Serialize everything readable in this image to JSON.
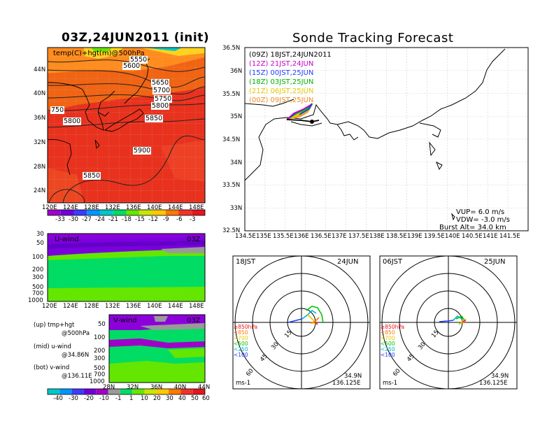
{
  "left_title": "03Z,24JUN2011 (init)",
  "right_title": "Sonde Tracking Forecast",
  "map500": {
    "label": "temp(C)+hgt(m)@500hPa",
    "contours": [
      "5550",
      "5600",
      "5650",
      "5700",
      "5750",
      "5800",
      "5850",
      "5900",
      "5850",
      "5800",
      "750"
    ],
    "y_ticks": [
      "44N",
      "40N",
      "36N",
      "32N",
      "28N",
      "24N"
    ],
    "x_ticks": [
      "120E",
      "124E",
      "128E",
      "132E",
      "136E",
      "140E",
      "144E",
      "148E"
    ]
  },
  "temp_colorbar": {
    "labels": [
      "-33",
      "-30",
      "-27",
      "-24",
      "-21",
      "-18",
      "-15",
      "-12",
      "-9",
      "-6",
      "-3"
    ],
    "colors": [
      "#a000c8",
      "#6e00dc",
      "#3c3cff",
      "#0096ff",
      "#00c8c8",
      "#00dc64",
      "#64e600",
      "#c8e600",
      "#ffc800",
      "#ff7800",
      "#f03228",
      "#e6141e"
    ]
  },
  "uwind": {
    "label": "U-wind",
    "time": "03Z",
    "y_ticks": [
      "30",
      "50",
      "100",
      "200",
      "300",
      "500",
      "700",
      "1000"
    ],
    "x_ticks": [
      "120E",
      "124E",
      "128E",
      "132E",
      "136E",
      "140E",
      "144E",
      "148E"
    ]
  },
  "vwind": {
    "label": "V-wind",
    "time": "03Z",
    "y_ticks": [
      "50",
      "100",
      "200",
      "300",
      "500",
      "700",
      "1000"
    ],
    "x_ticks": [
      "28N",
      "32N",
      "36N",
      "40N",
      "44N"
    ]
  },
  "notes": [
    {
      "line1": "(up)  tmp+hgt",
      "line2": "@500hPa"
    },
    {
      "line1": "(mid)  u-wind",
      "line2": "@34.86N"
    },
    {
      "line1": "(bot)  v-wind",
      "line2": "@136.11E"
    }
  ],
  "wind_colorbar": {
    "labels": [
      "-40",
      "-30",
      "-20",
      "-10",
      "-1",
      "1",
      "10",
      "20",
      "30",
      "40",
      "50",
      "60"
    ],
    "colors": [
      "#00c8c8",
      "#0096ff",
      "#3c3cff",
      "#6e00dc",
      "#a000c8",
      "#999999",
      "#00dc64",
      "#64e600",
      "#c8e600",
      "#ffc800",
      "#ff7800",
      "#f03228",
      "#e6141e"
    ]
  },
  "track_map": {
    "y_ticks": [
      "36.5N",
      "36N",
      "35.5N",
      "35N",
      "34.5N",
      "34N",
      "33.5N",
      "33N",
      "32.5N"
    ],
    "x_ticks": [
      "134.5E",
      "135E",
      "135.5E",
      "136E",
      "136.5E",
      "137E",
      "137.5E",
      "138E",
      "138.5E",
      "139E",
      "139.5E",
      "140E",
      "140.5E",
      "141E",
      "141.5E"
    ],
    "legend": [
      {
        "text": "(09Z)  18JST,24JUN2011",
        "color": "#000000"
      },
      {
        "text": "(12Z)  21JST,24JUN",
        "color": "#c800c8"
      },
      {
        "text": "(15Z)  00JST,25JUN",
        "color": "#1e3cff"
      },
      {
        "text": "(18Z)  03JST,25JUN",
        "color": "#00b400"
      },
      {
        "text": "(21Z)  06JST,25JUN",
        "color": "#e6c800"
      },
      {
        "text": "(00Z)  09JST,25JUN",
        "color": "#f08c28"
      }
    ],
    "vup": "VUP=  6.0  m/s",
    "vdw": "VDW= -3.0  m/s",
    "burst": "Burst Alt=  34.0  km"
  },
  "hodo_left": {
    "time": "18JST",
    "date": "24JUN",
    "rings": [
      "15",
      "30",
      "45",
      "60"
    ],
    "levels": [
      {
        "text": "≥850hPa",
        "color": "#e6141e"
      },
      {
        "text": "<850",
        "color": "#ff7800"
      },
      {
        "text": "<700",
        "color": "#e6c800"
      },
      {
        "text": "<500",
        "color": "#00c800"
      },
      {
        "text": "<250",
        "color": "#00b4c8"
      },
      {
        "text": "<100",
        "color": "#1e3cff"
      }
    ],
    "unit": "ms-1",
    "lat": "34.9N",
    "lon": "136.125E"
  },
  "hodo_right": {
    "time": "06JST",
    "date": "25JUN",
    "rings": [
      "15",
      "30",
      "45",
      "60"
    ],
    "levels": [
      {
        "text": "≥850hPa",
        "color": "#e6141e"
      },
      {
        "text": "<850",
        "color": "#ff7800"
      },
      {
        "text": "<700",
        "color": "#e6c800"
      },
      {
        "text": "<500",
        "color": "#00c800"
      },
      {
        "text": "<250",
        "color": "#00b4c8"
      },
      {
        "text": "<100",
        "color": "#1e3cff"
      }
    ],
    "unit": "ms-1",
    "lat": "34.9N",
    "lon": "136.125E"
  }
}
